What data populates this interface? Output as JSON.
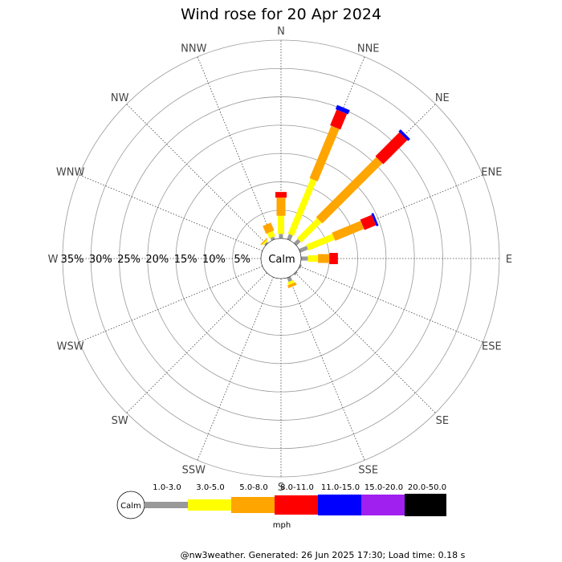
{
  "title": "Wind rose for 20 Apr 2024",
  "center_label": "Calm",
  "footer": "@nw3weather. Generated: 26 Jun 2025 17:30; Load time: 0.18 s",
  "chart_data": {
    "type": "windrose",
    "title": "Wind rose for 20 Apr 2024",
    "unit": "mph",
    "directions": [
      "N",
      "NNE",
      "NE",
      "ENE",
      "E",
      "ESE",
      "SE",
      "SSE",
      "S",
      "SSW",
      "SW",
      "WSW",
      "W",
      "WNW",
      "NW",
      "NNW"
    ],
    "radial_ticks": [
      "5%",
      "10%",
      "15%",
      "20%",
      "25%",
      "30%",
      "35%"
    ],
    "radial_values": [
      5,
      10,
      15,
      20,
      25,
      30,
      35
    ],
    "r_max": 35,
    "speed_bins": [
      {
        "label": "1.0-3.0",
        "color": "#999999"
      },
      {
        "label": "3.0-5.0",
        "color": "#ffff00"
      },
      {
        "label": "5.0-8.0",
        "color": "#ffa500"
      },
      {
        "label": "8.0-11.0",
        "color": "#ff0000"
      },
      {
        "label": "11.0-15.0",
        "color": "#0000ff"
      },
      {
        "label": "15.0-20.0",
        "color": "#a020f0"
      },
      {
        "label": "20.0-50.0",
        "color": "#000000"
      }
    ],
    "cumulative_percent": {
      "N": [
        0.8,
        4.0,
        7.2,
        8.2,
        8.2,
        8.2,
        8.2
      ],
      "NNE": [
        1.0,
        11.5,
        21.5,
        24.5,
        25.3,
        25.3,
        25.3
      ],
      "NE": [
        1.0,
        6.0,
        21.0,
        27.0,
        27.5,
        27.5,
        27.5
      ],
      "ENE": [
        1.5,
        6.5,
        12.0,
        14.2,
        14.6,
        14.6,
        14.6
      ],
      "E": [
        1.2,
        3.0,
        5.0,
        6.5,
        6.5,
        6.5,
        6.5
      ],
      "ESE": [
        0.3,
        0.3,
        0.3,
        0.3,
        0.3,
        0.3,
        0.3
      ],
      "SE": [
        0.3,
        0.3,
        0.3,
        0.3,
        0.3,
        0.3,
        0.3
      ],
      "SSE": [
        0.8,
        1.3,
        1.8,
        1.8,
        1.8,
        1.8,
        1.8
      ],
      "S": [
        0,
        0,
        0,
        0,
        0,
        0,
        0
      ],
      "SSW": [
        0,
        0,
        0,
        0,
        0,
        0,
        0
      ],
      "SW": [
        0,
        0,
        0,
        0,
        0,
        0,
        0
      ],
      "WSW": [
        0,
        0,
        0,
        0,
        0,
        0,
        0
      ],
      "W": [
        0,
        0,
        0,
        0,
        0,
        0,
        0
      ],
      "WNW": [
        0,
        0,
        0,
        0,
        0,
        0,
        0
      ],
      "NW": [
        0.3,
        0.6,
        0.8,
        0.8,
        0.8,
        0.8,
        0.8
      ],
      "NNW": [
        0.5,
        1.5,
        3.0,
        3.0,
        3.0,
        3.0,
        3.0
      ]
    },
    "grid": true
  }
}
